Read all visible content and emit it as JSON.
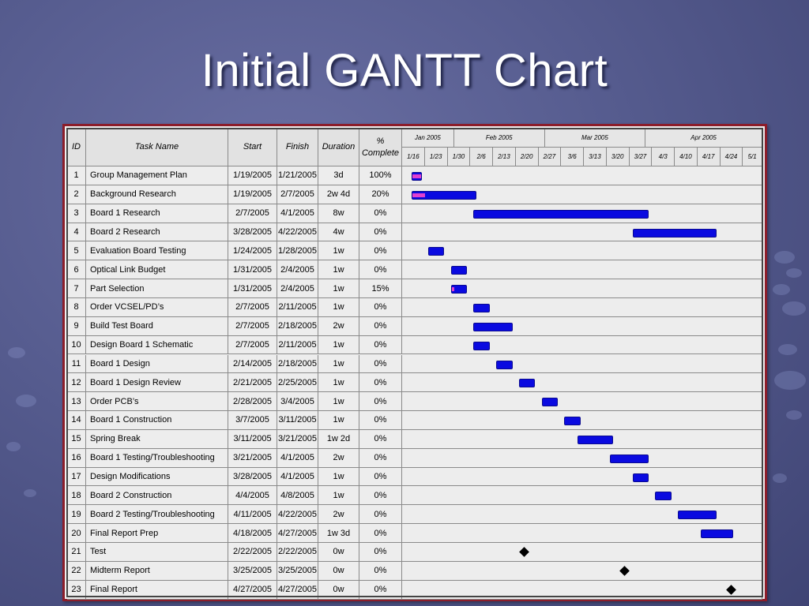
{
  "slide": {
    "title": "Initial GANTT Chart"
  },
  "table": {
    "headers": {
      "id": "ID",
      "task": "Task Name",
      "start": "Start",
      "finish": "Finish",
      "duration": "Duration",
      "complete": "% Complete"
    }
  },
  "colors": {
    "bar": "#0a0ae0",
    "progress": "#e040d0",
    "milestone": "#000000",
    "frame": "#8c1d2a"
  },
  "chart_data": {
    "type": "gantt",
    "timeline": {
      "months": [
        "Jan 2005",
        "Feb 2005",
        "Mar 2005",
        "Apr 2005"
      ],
      "weeks": [
        "1/16",
        "1/23",
        "1/30",
        "2/6",
        "2/13",
        "2/20",
        "2/27",
        "3/6",
        "3/13",
        "3/20",
        "3/27",
        "4/3",
        "4/10",
        "4/17",
        "4/24",
        "5/1"
      ],
      "range": [
        "2005-01-16",
        "2005-05-07"
      ]
    },
    "tasks": [
      {
        "id": "1",
        "name": "Group Management Plan",
        "start": "1/19/2005",
        "finish": "1/21/2005",
        "duration": "3d",
        "complete": "100%",
        "pct": 100
      },
      {
        "id": "2",
        "name": "Background Research",
        "start": "1/19/2005",
        "finish": "2/7/2005",
        "duration": "2w 4d",
        "complete": "20%",
        "pct": 20
      },
      {
        "id": "3",
        "name": "Board 1 Research",
        "start": "2/7/2005",
        "finish": "4/1/2005",
        "duration": "8w",
        "complete": "0%",
        "pct": 0
      },
      {
        "id": "4",
        "name": "Board 2 Research",
        "start": "3/28/2005",
        "finish": "4/22/2005",
        "duration": "4w",
        "complete": "0%",
        "pct": 0
      },
      {
        "id": "5",
        "name": "Evaluation Board Testing",
        "start": "1/24/2005",
        "finish": "1/28/2005",
        "duration": "1w",
        "complete": "0%",
        "pct": 0
      },
      {
        "id": "6",
        "name": "Optical Link Budget",
        "start": "1/31/2005",
        "finish": "2/4/2005",
        "duration": "1w",
        "complete": "0%",
        "pct": 0
      },
      {
        "id": "7",
        "name": "Part Selection",
        "start": "1/31/2005",
        "finish": "2/4/2005",
        "duration": "1w",
        "complete": "15%",
        "pct": 15
      },
      {
        "id": "8",
        "name": "Order VCSEL/PD’s",
        "start": "2/7/2005",
        "finish": "2/11/2005",
        "duration": "1w",
        "complete": "0%",
        "pct": 0
      },
      {
        "id": "9",
        "name": "Build Test Board",
        "start": "2/7/2005",
        "finish": "2/18/2005",
        "duration": "2w",
        "complete": "0%",
        "pct": 0
      },
      {
        "id": "10",
        "name": "Design Board 1 Schematic",
        "start": "2/7/2005",
        "finish": "2/11/2005",
        "duration": "1w",
        "complete": "0%",
        "pct": 0
      },
      {
        "id": "11",
        "name": "Board 1 Design",
        "start": "2/14/2005",
        "finish": "2/18/2005",
        "duration": "1w",
        "complete": "0%",
        "pct": 0
      },
      {
        "id": "12",
        "name": "Board 1 Design Review",
        "start": "2/21/2005",
        "finish": "2/25/2005",
        "duration": "1w",
        "complete": "0%",
        "pct": 0
      },
      {
        "id": "13",
        "name": "Order PCB’s",
        "start": "2/28/2005",
        "finish": "3/4/2005",
        "duration": "1w",
        "complete": "0%",
        "pct": 0
      },
      {
        "id": "14",
        "name": "Board 1 Construction",
        "start": "3/7/2005",
        "finish": "3/11/2005",
        "duration": "1w",
        "complete": "0%",
        "pct": 0
      },
      {
        "id": "15",
        "name": "Spring Break",
        "start": "3/11/2005",
        "finish": "3/21/2005",
        "duration": "1w 2d",
        "complete": "0%",
        "pct": 0
      },
      {
        "id": "16",
        "name": "Board 1 Testing/Troubleshooting",
        "start": "3/21/2005",
        "finish": "4/1/2005",
        "duration": "2w",
        "complete": "0%",
        "pct": 0
      },
      {
        "id": "17",
        "name": "Design Modifications",
        "start": "3/28/2005",
        "finish": "4/1/2005",
        "duration": "1w",
        "complete": "0%",
        "pct": 0
      },
      {
        "id": "18",
        "name": "Board 2 Construction",
        "start": "4/4/2005",
        "finish": "4/8/2005",
        "duration": "1w",
        "complete": "0%",
        "pct": 0
      },
      {
        "id": "19",
        "name": "Board 2 Testing/Troubleshooting",
        "start": "4/11/2005",
        "finish": "4/22/2005",
        "duration": "2w",
        "complete": "0%",
        "pct": 0
      },
      {
        "id": "20",
        "name": "Final Report Prep",
        "start": "4/18/2005",
        "finish": "4/27/2005",
        "duration": "1w 3d",
        "complete": "0%",
        "pct": 0
      },
      {
        "id": "21",
        "name": "Test",
        "start": "2/22/2005",
        "finish": "2/22/2005",
        "duration": "0w",
        "complete": "0%",
        "pct": 0,
        "milestone": true
      },
      {
        "id": "22",
        "name": "Midterm Report",
        "start": "3/25/2005",
        "finish": "3/25/2005",
        "duration": "0w",
        "complete": "0%",
        "pct": 0,
        "milestone": true
      },
      {
        "id": "23",
        "name": "Final Report",
        "start": "4/27/2005",
        "finish": "4/27/2005",
        "duration": "0w",
        "complete": "0%",
        "pct": 0,
        "milestone": true
      }
    ]
  }
}
